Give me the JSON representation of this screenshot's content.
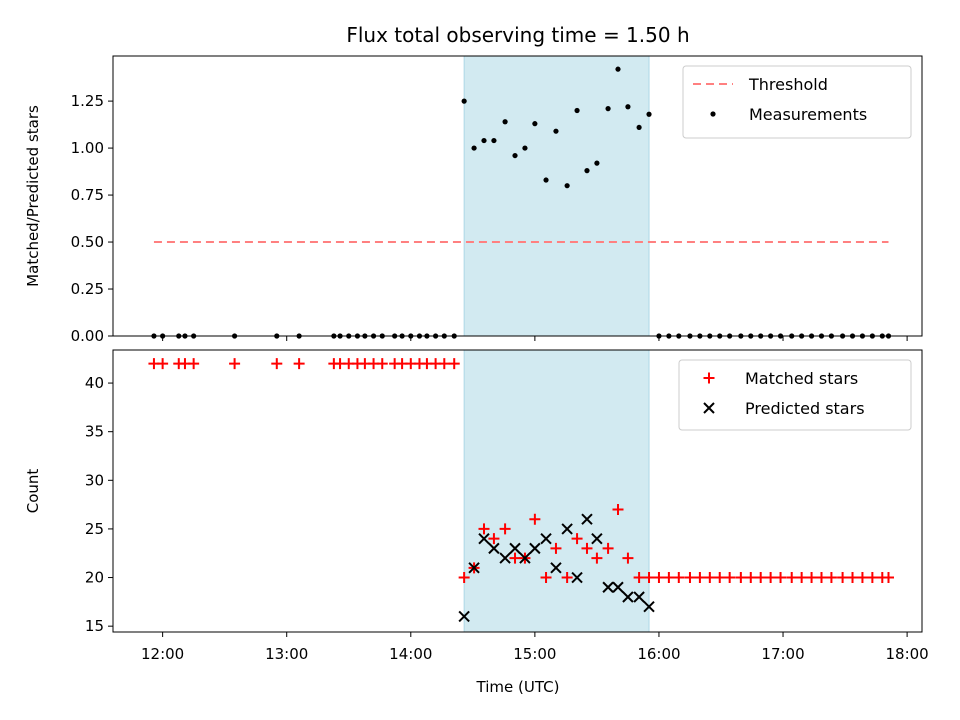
{
  "title": "Flux total observing time = 1.50 h",
  "x_axis": {
    "label": "Time (UTC)",
    "range_hours": [
      11.6,
      18.12
    ],
    "ticks": [
      {
        "h": 12,
        "label": "12:00"
      },
      {
        "h": 13,
        "label": "13:00"
      },
      {
        "h": 14,
        "label": "14:00"
      },
      {
        "h": 15,
        "label": "15:00"
      },
      {
        "h": 16,
        "label": "16:00"
      },
      {
        "h": 17,
        "label": "17:00"
      },
      {
        "h": 18,
        "label": "18:00"
      }
    ]
  },
  "shaded_region_hours": [
    14.43,
    15.92
  ],
  "shade_color": "#add8e6",
  "chart_data": [
    {
      "type": "scatter",
      "ylabel": "Matched/Predicted stars",
      "ylim": [
        0,
        1.49
      ],
      "yticks": [
        "0.00",
        "0.25",
        "0.50",
        "0.75",
        "1.00",
        "1.25"
      ],
      "threshold": {
        "name": "Threshold",
        "value": 0.5,
        "x_range": [
          11.93,
          17.85
        ],
        "color": "#ff8080"
      },
      "series": [
        {
          "name": "Measurements",
          "color": "#000000",
          "points": [
            [
              11.93,
              0
            ],
            [
              12.0,
              0
            ],
            [
              12.13,
              0
            ],
            [
              12.18,
              0
            ],
            [
              12.25,
              0
            ],
            [
              12.58,
              0
            ],
            [
              12.92,
              0
            ],
            [
              13.1,
              0
            ],
            [
              13.38,
              0
            ],
            [
              13.43,
              0
            ],
            [
              13.5,
              0
            ],
            [
              13.57,
              0
            ],
            [
              13.63,
              0
            ],
            [
              13.7,
              0
            ],
            [
              13.77,
              0
            ],
            [
              13.87,
              0
            ],
            [
              13.93,
              0
            ],
            [
              14.0,
              0
            ],
            [
              14.07,
              0
            ],
            [
              14.13,
              0
            ],
            [
              14.2,
              0
            ],
            [
              14.27,
              0
            ],
            [
              14.35,
              0
            ],
            [
              14.43,
              1.25
            ],
            [
              14.51,
              1.0
            ],
            [
              14.59,
              1.04
            ],
            [
              14.67,
              1.04
            ],
            [
              14.76,
              1.14
            ],
            [
              14.84,
              0.96
            ],
            [
              14.92,
              1.0
            ],
            [
              15.0,
              1.13
            ],
            [
              15.09,
              0.83
            ],
            [
              15.17,
              1.09
            ],
            [
              15.26,
              0.8
            ],
            [
              15.34,
              1.2
            ],
            [
              15.42,
              0.88
            ],
            [
              15.5,
              0.92
            ],
            [
              15.59,
              1.21
            ],
            [
              15.67,
              1.42
            ],
            [
              15.75,
              1.22
            ],
            [
              15.84,
              1.11
            ],
            [
              15.92,
              1.18
            ],
            [
              16.0,
              0
            ],
            [
              16.08,
              0
            ],
            [
              16.16,
              0
            ],
            [
              16.25,
              0
            ],
            [
              16.33,
              0
            ],
            [
              16.41,
              0
            ],
            [
              16.49,
              0
            ],
            [
              16.57,
              0
            ],
            [
              16.66,
              0
            ],
            [
              16.74,
              0
            ],
            [
              16.82,
              0
            ],
            [
              16.9,
              0
            ],
            [
              16.98,
              0
            ],
            [
              17.07,
              0
            ],
            [
              17.15,
              0
            ],
            [
              17.23,
              0
            ],
            [
              17.31,
              0
            ],
            [
              17.39,
              0
            ],
            [
              17.48,
              0
            ],
            [
              17.56,
              0
            ],
            [
              17.64,
              0
            ],
            [
              17.72,
              0
            ],
            [
              17.8,
              0
            ],
            [
              17.85,
              0
            ]
          ]
        }
      ],
      "legend_position": "top-right"
    },
    {
      "type": "scatter",
      "ylabel": "Count",
      "ylim": [
        14.4,
        43.4
      ],
      "yticks": [
        "15",
        "20",
        "25",
        "30",
        "35",
        "40"
      ],
      "series": [
        {
          "name": "Matched stars",
          "marker": "+",
          "color": "#ff0000",
          "points": [
            [
              11.93,
              42
            ],
            [
              12.0,
              42
            ],
            [
              12.13,
              42
            ],
            [
              12.18,
              42
            ],
            [
              12.25,
              42
            ],
            [
              12.58,
              42
            ],
            [
              12.92,
              42
            ],
            [
              13.1,
              42
            ],
            [
              13.38,
              42
            ],
            [
              13.43,
              42
            ],
            [
              13.5,
              42
            ],
            [
              13.57,
              42
            ],
            [
              13.63,
              42
            ],
            [
              13.7,
              42
            ],
            [
              13.77,
              42
            ],
            [
              13.87,
              42
            ],
            [
              13.93,
              42
            ],
            [
              14.0,
              42
            ],
            [
              14.07,
              42
            ],
            [
              14.13,
              42
            ],
            [
              14.2,
              42
            ],
            [
              14.27,
              42
            ],
            [
              14.35,
              42
            ],
            [
              14.43,
              20
            ],
            [
              14.51,
              21
            ],
            [
              14.59,
              25
            ],
            [
              14.67,
              24
            ],
            [
              14.76,
              25
            ],
            [
              14.84,
              22
            ],
            [
              14.92,
              22
            ],
            [
              15.0,
              26
            ],
            [
              15.09,
              20
            ],
            [
              15.17,
              23
            ],
            [
              15.26,
              20
            ],
            [
              15.34,
              24
            ],
            [
              15.42,
              23
            ],
            [
              15.5,
              22
            ],
            [
              15.59,
              23
            ],
            [
              15.67,
              27
            ],
            [
              15.75,
              22
            ],
            [
              15.84,
              20
            ],
            [
              15.92,
              20
            ],
            [
              16.0,
              20
            ],
            [
              16.08,
              20
            ],
            [
              16.16,
              20
            ],
            [
              16.25,
              20
            ],
            [
              16.33,
              20
            ],
            [
              16.41,
              20
            ],
            [
              16.49,
              20
            ],
            [
              16.57,
              20
            ],
            [
              16.66,
              20
            ],
            [
              16.74,
              20
            ],
            [
              16.82,
              20
            ],
            [
              16.9,
              20
            ],
            [
              16.98,
              20
            ],
            [
              17.07,
              20
            ],
            [
              17.15,
              20
            ],
            [
              17.23,
              20
            ],
            [
              17.31,
              20
            ],
            [
              17.39,
              20
            ],
            [
              17.48,
              20
            ],
            [
              17.56,
              20
            ],
            [
              17.64,
              20
            ],
            [
              17.72,
              20
            ],
            [
              17.8,
              20
            ],
            [
              17.85,
              20
            ]
          ]
        },
        {
          "name": "Predicted stars",
          "marker": "x",
          "color": "#000000",
          "points": [
            [
              14.43,
              16
            ],
            [
              14.51,
              21
            ],
            [
              14.59,
              24
            ],
            [
              14.67,
              23
            ],
            [
              14.76,
              22
            ],
            [
              14.84,
              23
            ],
            [
              14.92,
              22
            ],
            [
              15.0,
              23
            ],
            [
              15.09,
              24
            ],
            [
              15.17,
              21
            ],
            [
              15.26,
              25
            ],
            [
              15.34,
              20
            ],
            [
              15.42,
              26
            ],
            [
              15.5,
              24
            ],
            [
              15.59,
              19
            ],
            [
              15.67,
              19
            ],
            [
              15.75,
              18
            ],
            [
              15.84,
              18
            ],
            [
              15.92,
              17
            ]
          ]
        }
      ],
      "legend_position": "top-right"
    }
  ]
}
